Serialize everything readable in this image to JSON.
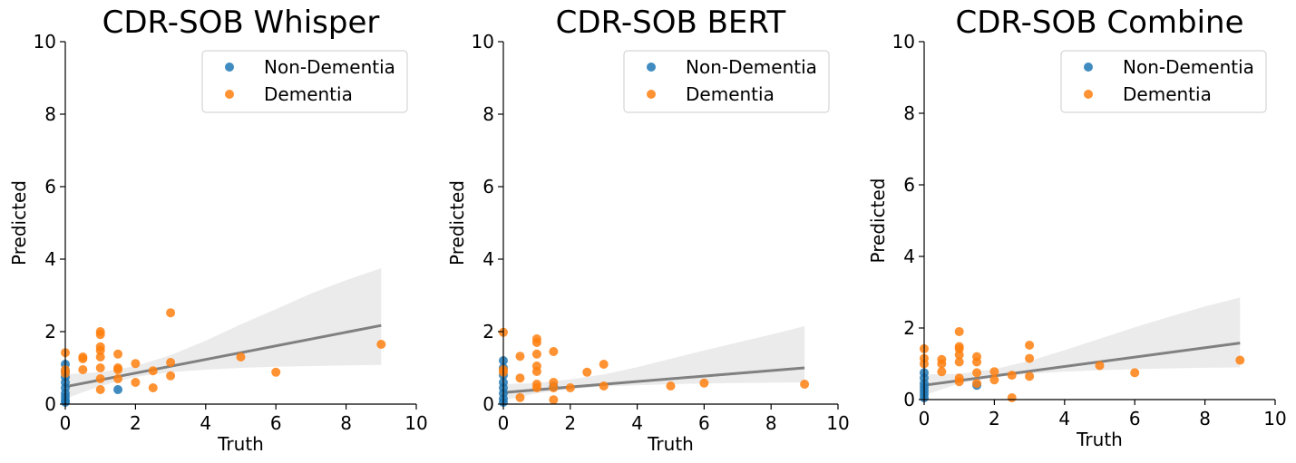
{
  "colors": {
    "non_dementia": "#1f77b4",
    "dementia": "#ff7f0e",
    "fit": "#808080",
    "band": "#ebebeb"
  },
  "chart_data": [
    {
      "type": "scatter",
      "title": "CDR-SOB Whisper",
      "xlabel": "Truth",
      "ylabel": "Predicted",
      "xlim": [
        0,
        10
      ],
      "ylim": [
        0,
        10
      ],
      "xticks": [
        "0",
        "2",
        "4",
        "6",
        "8",
        "10"
      ],
      "yticks": [
        "0",
        "2",
        "4",
        "6",
        "8",
        "10"
      ],
      "legend_position": "top-right",
      "series": [
        {
          "name": "Non-Dementia",
          "color": "#1f77b4",
          "points": [
            [
              0,
              1.1
            ],
            [
              0,
              0.9
            ],
            [
              0,
              0.75
            ],
            [
              0,
              0.6
            ],
            [
              0,
              0.45
            ],
            [
              0,
              0.3
            ],
            [
              0,
              0.2
            ],
            [
              0,
              0.1
            ],
            [
              0,
              0.05
            ],
            [
              1.5,
              0.4
            ]
          ]
        },
        {
          "name": "Dementia",
          "color": "#ff7f0e",
          "points": [
            [
              0,
              1.42
            ],
            [
              0,
              0.95
            ],
            [
              0,
              0.85
            ],
            [
              0.5,
              1.3
            ],
            [
              0.5,
              1.25
            ],
            [
              0.5,
              0.95
            ],
            [
              1,
              2.0
            ],
            [
              1,
              1.92
            ],
            [
              1,
              1.58
            ],
            [
              1,
              1.48
            ],
            [
              1,
              1.3
            ],
            [
              1,
              1.0
            ],
            [
              1,
              0.7
            ],
            [
              1,
              0.4
            ],
            [
              1.5,
              1.38
            ],
            [
              1.5,
              1.0
            ],
            [
              1.5,
              0.95
            ],
            [
              1.5,
              0.7
            ],
            [
              2,
              1.12
            ],
            [
              2,
              0.6
            ],
            [
              2.5,
              0.92
            ],
            [
              2.5,
              0.45
            ],
            [
              3,
              2.52
            ],
            [
              3,
              1.15
            ],
            [
              3,
              0.78
            ],
            [
              5,
              1.3
            ],
            [
              6,
              0.88
            ],
            [
              9,
              1.65
            ]
          ]
        }
      ],
      "fit": {
        "x": [
          0,
          9
        ],
        "y": [
          0.48,
          2.17
        ]
      },
      "band": {
        "x": [
          0,
          1,
          2,
          3,
          4,
          5,
          6,
          7,
          8,
          9
        ],
        "lower": [
          0.15,
          0.5,
          0.75,
          0.88,
          0.95,
          1.0,
          1.03,
          1.05,
          1.07,
          1.08
        ],
        "upper": [
          0.82,
          0.88,
          1.05,
          1.35,
          1.75,
          2.2,
          2.62,
          3.05,
          3.42,
          3.75
        ]
      }
    },
    {
      "type": "scatter",
      "title": "CDR-SOB BERT",
      "xlabel": "Truth",
      "ylabel": "Predicted",
      "xlim": [
        0,
        10
      ],
      "ylim": [
        0,
        10
      ],
      "xticks": [
        "0",
        "2",
        "4",
        "6",
        "8",
        "10"
      ],
      "yticks": [
        "0",
        "2",
        "4",
        "6",
        "8",
        "10"
      ],
      "legend_position": "top-right",
      "series": [
        {
          "name": "Non-Dementia",
          "color": "#1f77b4",
          "points": [
            [
              0,
              1.2
            ],
            [
              0,
              1.0
            ],
            [
              0,
              0.8
            ],
            [
              0,
              0.6
            ],
            [
              0,
              0.45
            ],
            [
              0,
              0.3
            ],
            [
              0,
              0.15
            ],
            [
              0,
              0.05
            ],
            [
              1.5,
              0.48
            ]
          ]
        },
        {
          "name": "Dementia",
          "color": "#ff7f0e",
          "points": [
            [
              0,
              1.98
            ],
            [
              0,
              0.95
            ],
            [
              0,
              0.88
            ],
            [
              0.5,
              1.32
            ],
            [
              0.5,
              0.72
            ],
            [
              0.5,
              0.18
            ],
            [
              1,
              1.8
            ],
            [
              1,
              1.7
            ],
            [
              1,
              1.38
            ],
            [
              1,
              1.05
            ],
            [
              1,
              0.9
            ],
            [
              1,
              0.55
            ],
            [
              1,
              0.45
            ],
            [
              1.5,
              1.45
            ],
            [
              1.5,
              0.6
            ],
            [
              1.5,
              0.45
            ],
            [
              1.5,
              0.12
            ],
            [
              2,
              0.45
            ],
            [
              2.5,
              0.88
            ],
            [
              3,
              1.1
            ],
            [
              3,
              0.5
            ],
            [
              5,
              0.5
            ],
            [
              6,
              0.58
            ],
            [
              9,
              0.55
            ]
          ]
        }
      ],
      "fit": {
        "x": [
          0,
          9
        ],
        "y": [
          0.32,
          1.0
        ]
      },
      "band": {
        "x": [
          0,
          1,
          2,
          3,
          4,
          5,
          6,
          7,
          8,
          9
        ],
        "lower": [
          0.1,
          0.3,
          0.42,
          0.48,
          0.52,
          0.55,
          0.57,
          0.58,
          0.59,
          0.6
        ],
        "upper": [
          0.55,
          0.58,
          0.68,
          0.82,
          1.02,
          1.25,
          1.48,
          1.7,
          1.92,
          2.15
        ]
      }
    },
    {
      "type": "scatter",
      "title": "CDR-SOB Combine",
      "xlabel": "Truth",
      "ylabel": "Predicted",
      "xlim": [
        0,
        10
      ],
      "ylim": [
        0,
        10
      ],
      "xticks": [
        "0",
        "2",
        "4",
        "6",
        "8",
        "10"
      ],
      "yticks": [
        "0",
        "2",
        "4",
        "6",
        "8",
        "10"
      ],
      "legend_position": "top-right",
      "series": [
        {
          "name": "Non-Dementia",
          "color": "#1f77b4",
          "points": [
            [
              0,
              0.75
            ],
            [
              0,
              0.6
            ],
            [
              0,
              0.45
            ],
            [
              0,
              0.35
            ],
            [
              0,
              0.25
            ],
            [
              0,
              0.15
            ],
            [
              0,
              0.05
            ],
            [
              1.5,
              0.4
            ]
          ]
        },
        {
          "name": "Dementia",
          "color": "#ff7f0e",
          "points": [
            [
              0,
              1.42
            ],
            [
              0,
              1.15
            ],
            [
              0,
              1.0
            ],
            [
              0.5,
              1.12
            ],
            [
              0.5,
              1.0
            ],
            [
              0.5,
              0.78
            ],
            [
              1,
              1.9
            ],
            [
              1,
              1.48
            ],
            [
              1,
              1.42
            ],
            [
              1,
              1.25
            ],
            [
              1,
              1.05
            ],
            [
              1,
              0.6
            ],
            [
              1,
              0.5
            ],
            [
              1.5,
              1.2
            ],
            [
              1.5,
              1.05
            ],
            [
              1.5,
              0.75
            ],
            [
              1.5,
              0.45
            ],
            [
              2,
              0.78
            ],
            [
              2,
              0.55
            ],
            [
              2.5,
              0.68
            ],
            [
              2.5,
              0.05
            ],
            [
              3,
              1.52
            ],
            [
              3,
              1.15
            ],
            [
              3,
              0.65
            ],
            [
              5,
              0.95
            ],
            [
              6,
              0.75
            ],
            [
              9,
              1.1
            ]
          ]
        }
      ],
      "fit": {
        "x": [
          0,
          9
        ],
        "y": [
          0.4,
          1.58
        ]
      },
      "band": {
        "x": [
          0,
          1,
          2,
          3,
          4,
          5,
          6,
          7,
          8,
          9
        ],
        "lower": [
          0.12,
          0.45,
          0.62,
          0.72,
          0.78,
          0.82,
          0.85,
          0.87,
          0.89,
          0.9
        ],
        "upper": [
          0.7,
          0.72,
          0.85,
          1.08,
          1.38,
          1.7,
          2.02,
          2.32,
          2.6,
          2.85
        ]
      }
    }
  ]
}
